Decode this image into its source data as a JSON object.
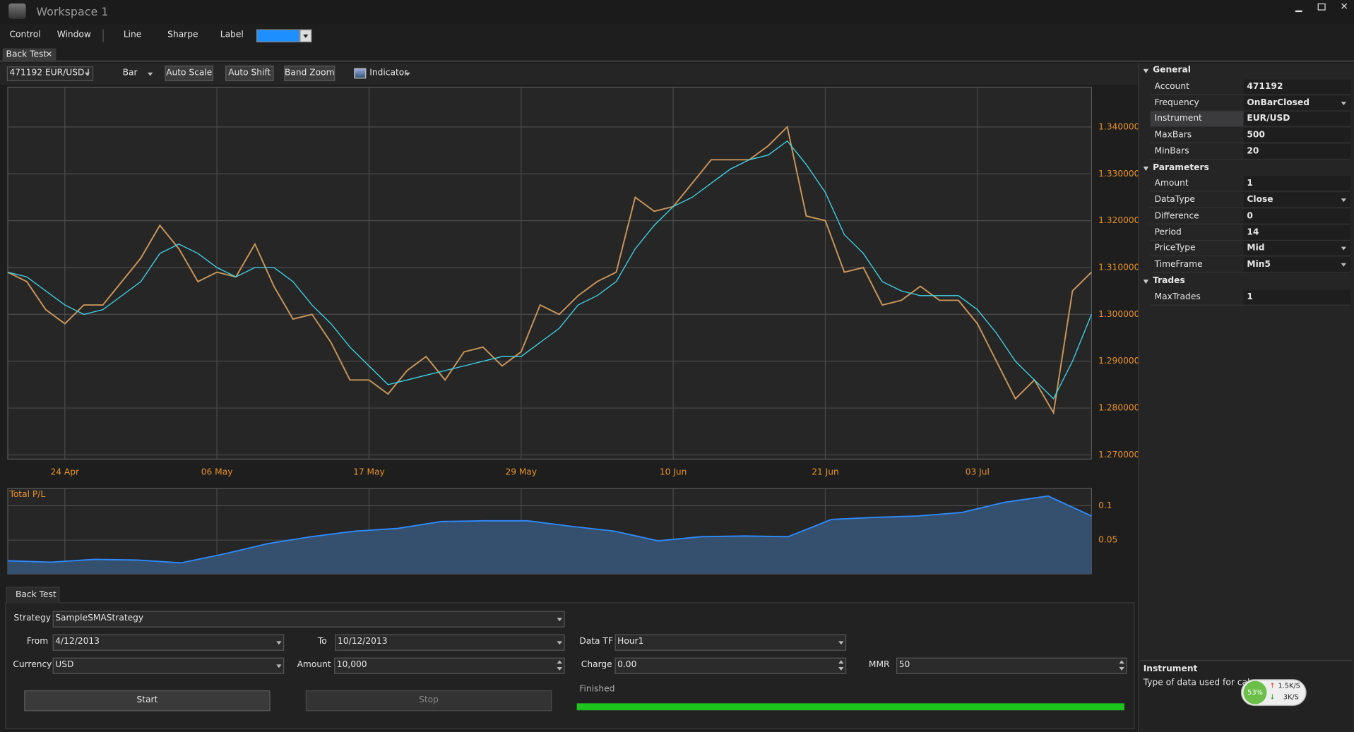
{
  "window": {
    "title": "Workspace 1"
  },
  "menu": {
    "items": [
      "Control",
      "Window",
      "Line",
      "Sharpe",
      "Label"
    ],
    "swatch_color": "#1e8fff"
  },
  "document_tab": "Back Test",
  "toolbar": {
    "instrument": "471192 EUR/USD I",
    "chart_type": "Bar",
    "buttons": [
      "Auto Scale",
      "Auto Shift",
      "Band Zoom"
    ],
    "indicator": "Indicator"
  },
  "chart_data": [
    {
      "type": "line",
      "categories": [
        null,
        null,
        null,
        "24 Apr",
        null,
        null,
        null,
        null,
        null,
        null,
        null,
        "06 May",
        null,
        null,
        null,
        null,
        null,
        null,
        null,
        "17 May",
        null,
        null,
        null,
        null,
        null,
        null,
        null,
        "29 May",
        null,
        null,
        null,
        null,
        null,
        null,
        null,
        "10 Jun",
        null,
        null,
        null,
        null,
        null,
        null,
        null,
        "21 Jun",
        null,
        null,
        null,
        null,
        null,
        null,
        null,
        "03 Jul",
        null,
        null,
        null,
        null,
        null,
        null
      ],
      "series": [
        {
          "color": "#c8955a",
          "values": [
            1.309,
            1.307,
            1.301,
            1.298,
            1.302,
            1.302,
            1.307,
            1.312,
            1.319,
            1.314,
            1.307,
            1.309,
            1.308,
            1.315,
            1.306,
            1.299,
            1.3,
            1.294,
            1.286,
            1.286,
            1.283,
            1.288,
            1.291,
            1.286,
            1.292,
            1.293,
            1.289,
            1.292,
            1.302,
            1.3,
            1.304,
            1.307,
            1.309,
            1.325,
            1.322,
            1.323,
            1.328,
            1.333,
            1.333,
            1.333,
            1.336,
            1.34,
            1.321,
            1.32,
            1.309,
            1.31,
            1.302,
            1.303,
            1.306,
            1.303,
            1.303,
            1.298,
            1.29,
            1.282,
            1.286,
            1.279,
            1.305,
            1.309
          ]
        },
        {
          "color": "#3fd3e6",
          "values": [
            1.309,
            1.308,
            1.305,
            1.302,
            1.3,
            1.301,
            1.304,
            1.307,
            1.313,
            1.315,
            1.313,
            1.31,
            1.308,
            1.31,
            1.31,
            1.307,
            1.302,
            1.298,
            1.293,
            1.289,
            1.285,
            1.286,
            1.287,
            1.288,
            1.289,
            1.29,
            1.291,
            1.291,
            1.294,
            1.297,
            1.302,
            1.304,
            1.307,
            1.314,
            1.319,
            1.323,
            1.325,
            1.328,
            1.331,
            1.333,
            1.334,
            1.337,
            1.332,
            1.326,
            1.317,
            1.313,
            1.307,
            1.305,
            1.304,
            1.304,
            1.304,
            1.301,
            1.296,
            1.29,
            1.286,
            1.282,
            1.29,
            1.3
          ]
        }
      ],
      "ylim": [
        1.2691,
        1.3485
      ],
      "yticks": [
        {
          "value": 1.27,
          "label": "1.270000"
        },
        {
          "value": 1.28,
          "label": "1.280000"
        },
        {
          "value": 1.29,
          "label": "1.290000"
        },
        {
          "value": 1.3,
          "label": "1.300000"
        },
        {
          "value": 1.31,
          "label": "1.310000"
        },
        {
          "value": 1.32,
          "label": "1.320000"
        },
        {
          "value": 1.33,
          "label": "1.330000"
        },
        {
          "value": 1.34,
          "label": "1.340000"
        }
      ],
      "grid": true,
      "tick_color": "#e8922a"
    },
    {
      "type": "area",
      "title": "Total P/L",
      "color": "#2e8bff",
      "fill": "#34506e",
      "values": [
        0.02,
        0.018,
        0.022,
        0.021,
        0.017,
        0.03,
        0.045,
        0.055,
        0.063,
        0.067,
        0.077,
        0.078,
        0.078,
        0.07,
        0.063,
        0.049,
        0.055,
        0.056,
        0.055,
        0.08,
        0.083,
        0.085,
        0.09,
        0.105,
        0.114,
        0.085
      ],
      "ylim": [
        0.001,
        0.125
      ],
      "yticks": [
        0.05,
        0.1
      ],
      "grid": true,
      "tick_color": "#e8922a"
    }
  ],
  "properties": {
    "sections": [
      {
        "title": "General",
        "rows": [
          {
            "name": "Account",
            "value": "471192"
          },
          {
            "name": "Frequency",
            "value": "OnBarClosed",
            "dropdown": true
          },
          {
            "name": "Instrument",
            "value": "EUR/USD",
            "selected": true
          },
          {
            "name": "MaxBars",
            "value": "500"
          },
          {
            "name": "MinBars",
            "value": "20"
          }
        ]
      },
      {
        "title": "Parameters",
        "rows": [
          {
            "name": "Amount",
            "value": "1"
          },
          {
            "name": "DataType",
            "value": "Close",
            "dropdown": true
          },
          {
            "name": "Difference",
            "value": "0"
          },
          {
            "name": "Period",
            "value": "14"
          },
          {
            "name": "PriceType",
            "value": "Mid",
            "dropdown": true
          },
          {
            "name": "TimeFrame",
            "value": "Min5",
            "dropdown": true
          }
        ]
      },
      {
        "title": "Trades",
        "rows": [
          {
            "name": "MaxTrades",
            "value": "1"
          }
        ]
      }
    ]
  },
  "description": {
    "title": "Instrument",
    "text": "Type of data used for calcu"
  },
  "network": {
    "percent": "53%",
    "upload": "1.5K/S",
    "download": "3K/S"
  },
  "backtest": {
    "tab": "Back Test",
    "fields": [
      {
        "label": "Strategy",
        "value": "SampleSMAStrategy",
        "kind": "combo"
      },
      {
        "label": "From",
        "value": "4/12/2013",
        "kind": "combo"
      },
      {
        "label": "To",
        "value": "10/12/2013",
        "kind": "combo"
      },
      {
        "label": "Data TF",
        "value": "Hour1",
        "kind": "combo"
      },
      {
        "label": "Currency",
        "value": "USD",
        "kind": "combo"
      },
      {
        "label": "Amount",
        "value": "10,000",
        "kind": "spin"
      },
      {
        "label": "Charge",
        "value": "0.00",
        "kind": "spin"
      },
      {
        "label": "MMR",
        "value": "50",
        "kind": "spin"
      }
    ],
    "start": "Start",
    "stop": "Stop",
    "status": "Finished",
    "progress": 100,
    "progress_color": "#1ec41e"
  }
}
